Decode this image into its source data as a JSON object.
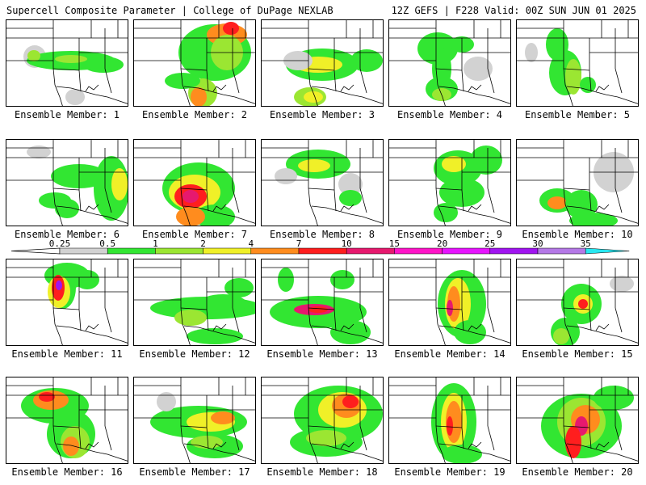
{
  "header": {
    "left": "Supercell Composite Parameter | College of DuPage NEXLAB",
    "right": "12Z GEFS | F228 Valid: 00Z SUN JUN 01 2025"
  },
  "legend": {
    "ticks": [
      "0.25",
      "0.5",
      "1",
      "2",
      "4",
      "7",
      "10",
      "15",
      "20",
      "25",
      "30",
      "35"
    ],
    "colors": [
      "#d2d2d2",
      "#32e632",
      "#9be632",
      "#f0f028",
      "#ff8c1e",
      "#ff1e1e",
      "#e6196e",
      "#ff14c8",
      "#e614ff",
      "#a014f0",
      "#b478e6",
      "#28e6f0"
    ]
  },
  "panels": [
    {
      "label": "Ensemble Member: 1"
    },
    {
      "label": "Ensemble Member: 2"
    },
    {
      "label": "Ensemble Member: 3"
    },
    {
      "label": "Ensemble Member: 4"
    },
    {
      "label": "Ensemble Member: 5"
    },
    {
      "label": "Ensemble Member: 6"
    },
    {
      "label": "Ensemble Member: 7"
    },
    {
      "label": "Ensemble Member: 8"
    },
    {
      "label": "Ensemble Member: 9"
    },
    {
      "label": "Ensemble Member: 10"
    },
    {
      "label": "Ensemble Member: 11"
    },
    {
      "label": "Ensemble Member: 12"
    },
    {
      "label": "Ensemble Member: 13"
    },
    {
      "label": "Ensemble Member: 14"
    },
    {
      "label": "Ensemble Member: 15"
    },
    {
      "label": "Ensemble Member: 16"
    },
    {
      "label": "Ensemble Member: 17"
    },
    {
      "label": "Ensemble Member: 18"
    },
    {
      "label": "Ensemble Member: 19"
    },
    {
      "label": "Ensemble Member: 20"
    }
  ]
}
